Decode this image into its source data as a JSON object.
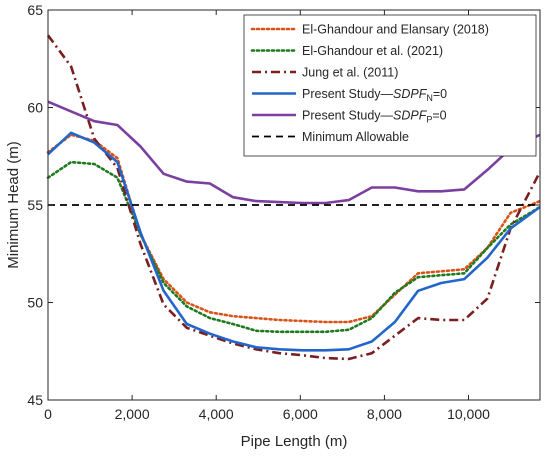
{
  "chart_data": {
    "type": "line",
    "xlabel": "Pipe Length (m)",
    "ylabel": "Minimum Head (m)",
    "xlim": [
      0,
      11700
    ],
    "ylim": [
      45,
      65
    ],
    "x_ticks": [
      0,
      2000,
      4000,
      6000,
      8000,
      10000
    ],
    "x_tick_labels": [
      "0",
      "2,000",
      "4,000",
      "6,000",
      "8,000",
      "10,000"
    ],
    "y_ticks": [
      45,
      50,
      55,
      60,
      65
    ],
    "y_tick_labels": [
      "45",
      "50",
      "55",
      "60",
      "65"
    ],
    "grid": false,
    "legend_position": "top-right",
    "series": [
      {
        "name": "El-Ghandour and Elansary (2018)",
        "color": "#d95319",
        "style": "dotted",
        "points": [
          [
            0,
            57.7
          ],
          [
            550,
            58.6
          ],
          [
            1100,
            58.3
          ],
          [
            1650,
            57.4
          ],
          [
            2200,
            53.5
          ],
          [
            2750,
            51.2
          ],
          [
            3300,
            50.0
          ],
          [
            3850,
            49.5
          ],
          [
            4400,
            49.3
          ],
          [
            4950,
            49.2
          ],
          [
            5500,
            49.1
          ],
          [
            6050,
            49.05
          ],
          [
            6600,
            49.0
          ],
          [
            7150,
            49.0
          ],
          [
            7700,
            49.3
          ],
          [
            8250,
            50.4
          ],
          [
            8800,
            51.5
          ],
          [
            9350,
            51.6
          ],
          [
            9900,
            51.7
          ],
          [
            10450,
            52.8
          ],
          [
            11000,
            54.6
          ],
          [
            11700,
            55.2
          ]
        ]
      },
      {
        "name": "El-Ghandour et al. (2021)",
        "color": "#1f7a1f",
        "style": "dotted",
        "points": [
          [
            0,
            56.4
          ],
          [
            550,
            57.2
          ],
          [
            1100,
            57.1
          ],
          [
            1650,
            56.4
          ],
          [
            2200,
            53.5
          ],
          [
            2750,
            51.0
          ],
          [
            3300,
            49.8
          ],
          [
            3850,
            49.2
          ],
          [
            4400,
            48.9
          ],
          [
            4950,
            48.55
          ],
          [
            5500,
            48.5
          ],
          [
            6050,
            48.5
          ],
          [
            6600,
            48.5
          ],
          [
            7150,
            48.6
          ],
          [
            7700,
            49.2
          ],
          [
            8250,
            50.5
          ],
          [
            8800,
            51.3
          ],
          [
            9350,
            51.4
          ],
          [
            9900,
            51.5
          ],
          [
            10450,
            52.8
          ],
          [
            11000,
            54.0
          ],
          [
            11700,
            54.9
          ]
        ]
      },
      {
        "name": "Jung et al. (2011)",
        "color": "#7a1f1f",
        "style": "dashdot",
        "points": [
          [
            0,
            63.7
          ],
          [
            550,
            62.1
          ],
          [
            1100,
            58.4
          ],
          [
            1650,
            56.9
          ],
          [
            2200,
            53.0
          ],
          [
            2750,
            49.9
          ],
          [
            3300,
            48.7
          ],
          [
            3850,
            48.3
          ],
          [
            4400,
            47.9
          ],
          [
            4950,
            47.6
          ],
          [
            5500,
            47.4
          ],
          [
            6050,
            47.3
          ],
          [
            6600,
            47.15
          ],
          [
            7150,
            47.1
          ],
          [
            7700,
            47.4
          ],
          [
            8250,
            48.3
          ],
          [
            8800,
            49.2
          ],
          [
            9350,
            49.1
          ],
          [
            9900,
            49.1
          ],
          [
            10450,
            50.2
          ],
          [
            11000,
            53.8
          ],
          [
            11700,
            56.7
          ]
        ]
      },
      {
        "name": "Present Study—SDPF_N=0",
        "name_prefix": "Present Study—",
        "name_italic": "SDPF",
        "name_sub": "N",
        "name_suffix": "=0",
        "color": "#2266cc",
        "style": "solid",
        "points": [
          [
            0,
            57.6
          ],
          [
            550,
            58.7
          ],
          [
            1100,
            58.2
          ],
          [
            1650,
            57.2
          ],
          [
            2200,
            53.6
          ],
          [
            2750,
            50.6
          ],
          [
            3300,
            48.9
          ],
          [
            3850,
            48.4
          ],
          [
            4400,
            48.0
          ],
          [
            4950,
            47.7
          ],
          [
            5500,
            47.6
          ],
          [
            6050,
            47.55
          ],
          [
            6600,
            47.55
          ],
          [
            7150,
            47.6
          ],
          [
            7700,
            48.0
          ],
          [
            8250,
            49.0
          ],
          [
            8800,
            50.6
          ],
          [
            9350,
            51.0
          ],
          [
            9900,
            51.2
          ],
          [
            10450,
            52.3
          ],
          [
            11000,
            53.8
          ],
          [
            11700,
            54.9
          ]
        ]
      },
      {
        "name": "Present Study—SDPF_P=0",
        "name_prefix": "Present Study—",
        "name_italic": "SDPF",
        "name_sub": "P",
        "name_suffix": "=0",
        "color": "#7b3fa0",
        "style": "solid",
        "points": [
          [
            0,
            60.3
          ],
          [
            550,
            59.8
          ],
          [
            1100,
            59.3
          ],
          [
            1650,
            59.1
          ],
          [
            2200,
            58.0
          ],
          [
            2750,
            56.6
          ],
          [
            3300,
            56.2
          ],
          [
            3850,
            56.1
          ],
          [
            4400,
            55.4
          ],
          [
            4950,
            55.2
          ],
          [
            5500,
            55.15
          ],
          [
            6050,
            55.1
          ],
          [
            6600,
            55.1
          ],
          [
            7150,
            55.25
          ],
          [
            7700,
            55.9
          ],
          [
            8250,
            55.9
          ],
          [
            8800,
            55.7
          ],
          [
            9350,
            55.7
          ],
          [
            9900,
            55.8
          ],
          [
            10450,
            56.8
          ],
          [
            11000,
            57.9
          ],
          [
            11700,
            58.6
          ]
        ]
      },
      {
        "name": "Minimum Allowable",
        "color": "#000000",
        "style": "dashed",
        "points": [
          [
            0,
            55.0
          ],
          [
            11700,
            55.0
          ]
        ]
      }
    ]
  }
}
